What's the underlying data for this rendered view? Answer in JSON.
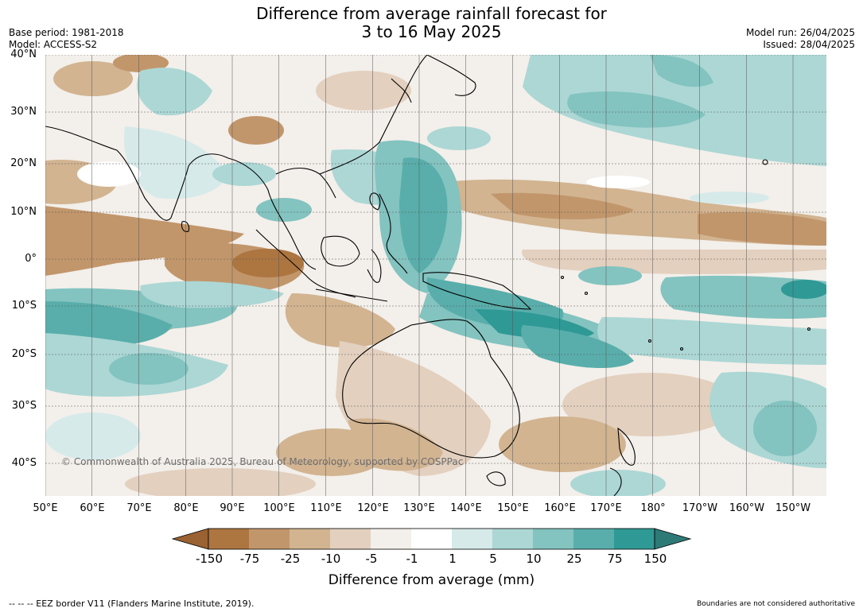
{
  "header": {
    "title_line1": "Difference from average rainfall forecast for",
    "title_line2": "3 to 16 May 2025",
    "base_period": "Base period: 1981-2018",
    "model": "Model: ACCESS-S2",
    "model_run": "Model run: 26/04/2025",
    "issued": "Issued: 28/04/2025"
  },
  "map": {
    "lat_labels": [
      "40°N",
      "30°N",
      "20°N",
      "10°N",
      "0°",
      "10°S",
      "20°S",
      "30°S",
      "40°S"
    ],
    "lon_labels": [
      "50°E",
      "60°E",
      "70°E",
      "80°E",
      "90°E",
      "100°E",
      "110°E",
      "120°E",
      "130°E",
      "140°E",
      "150°E",
      "160°E",
      "170°E",
      "180°",
      "170°W",
      "160°W",
      "150°W"
    ],
    "copyright": "© Commonwealth of Australia 2025, Bureau of Meteorology, supported by COSPPac"
  },
  "colorbar": {
    "ticks": [
      "-150",
      "-75",
      "-25",
      "-10",
      "-5",
      "-1",
      "1",
      "5",
      "10",
      "25",
      "75",
      "150"
    ],
    "colors": {
      "under": "#9a6232",
      "bins": [
        "#ad7540",
        "#c2966b",
        "#d2b491",
        "#e3d0bf",
        "#f3efea",
        "#ffffff",
        "#d6eaea",
        "#acd7d5",
        "#83c3c0",
        "#59aeab",
        "#2f9995"
      ],
      "over": "#2e7a77"
    },
    "label": "Difference from average (mm)"
  },
  "footer": {
    "legend": "--  --  -- EEZ border V11 (Flanders Marine Institute, 2019).",
    "disclaimer": "Boundaries are not considered authoritative"
  }
}
